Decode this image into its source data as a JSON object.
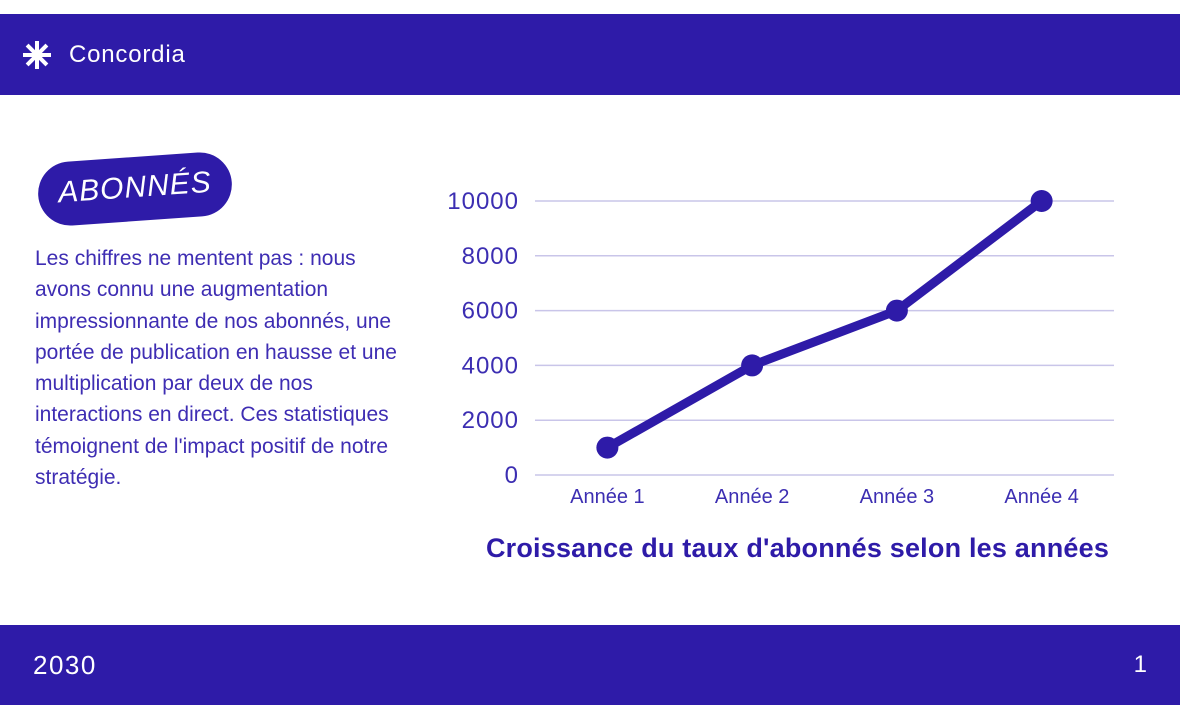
{
  "header": {
    "brand": "Concordia",
    "logo_icon": "asterisk-icon"
  },
  "badge": {
    "label": "ABONNÉS"
  },
  "body_text": "Les chiffres ne mentent pas : nous avons connu une augmentation impressionnante de nos abonnés, une portée de publication en hausse et une multiplication par deux de nos interactions en direct. Ces statistiques témoignent de l'impact positif de notre stratégie.",
  "chart_data": {
    "type": "line",
    "categories": [
      "Année 1",
      "Année 2",
      "Année 3",
      "Année 4"
    ],
    "values": [
      1000,
      4000,
      6000,
      10000
    ],
    "title": "Croissance du taux d'abonnés selon les années",
    "xlabel": "",
    "ylabel": "",
    "ylim": [
      0,
      10000
    ],
    "yticks": [
      0,
      2000,
      4000,
      6000,
      8000,
      10000
    ],
    "grid": true,
    "legend": "none",
    "line_color": "#2E1BA8",
    "point_color": "#2E1BA8",
    "gridline_color": "#C9C5E9",
    "axis_label_color": "#3C2EB2"
  },
  "footer": {
    "year": "2030",
    "page_number": "1"
  },
  "colors": {
    "brand_indigo": "#2E1BA8",
    "text_indigo": "#3E2DB3",
    "background": "#FFFFFF"
  }
}
